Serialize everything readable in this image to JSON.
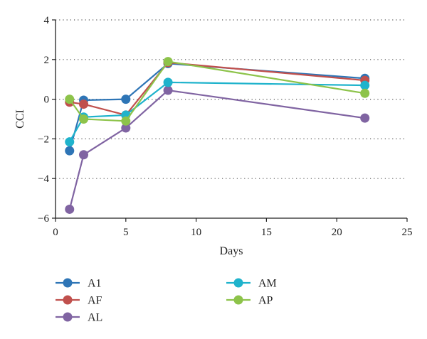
{
  "chart_data": {
    "type": "line",
    "title": "",
    "xlabel": "Days",
    "ylabel": "CCI",
    "xlim": [
      0,
      25
    ],
    "ylim": [
      -6,
      4
    ],
    "x_ticks": [
      "0",
      "5",
      "10",
      "15",
      "20",
      "25"
    ],
    "y_ticks": [
      "4",
      "2",
      "0",
      "−2",
      "−4",
      "−6"
    ],
    "grid": "horizontal dotted",
    "legend_position": "bottom",
    "x": [
      1,
      2,
      5,
      8,
      22
    ],
    "series": [
      {
        "name": "A1",
        "color": "#2e75b6",
        "values": [
          -2.6,
          -0.05,
          0.0,
          1.8,
          1.05
        ]
      },
      {
        "name": "AF",
        "color": "#c0504d",
        "values": [
          -0.15,
          -0.25,
          -0.8,
          1.85,
          0.95
        ]
      },
      {
        "name": "AL",
        "color": "#8064a2",
        "values": [
          -5.55,
          -2.8,
          -1.45,
          0.45,
          -0.95
        ]
      },
      {
        "name": "AM",
        "color": "#1fb3cc",
        "values": [
          -2.15,
          -0.9,
          -0.8,
          0.85,
          0.7
        ]
      },
      {
        "name": "AP",
        "color": "#8dc34a",
        "values": [
          0.0,
          -1.0,
          -1.1,
          1.9,
          0.3
        ]
      }
    ]
  }
}
